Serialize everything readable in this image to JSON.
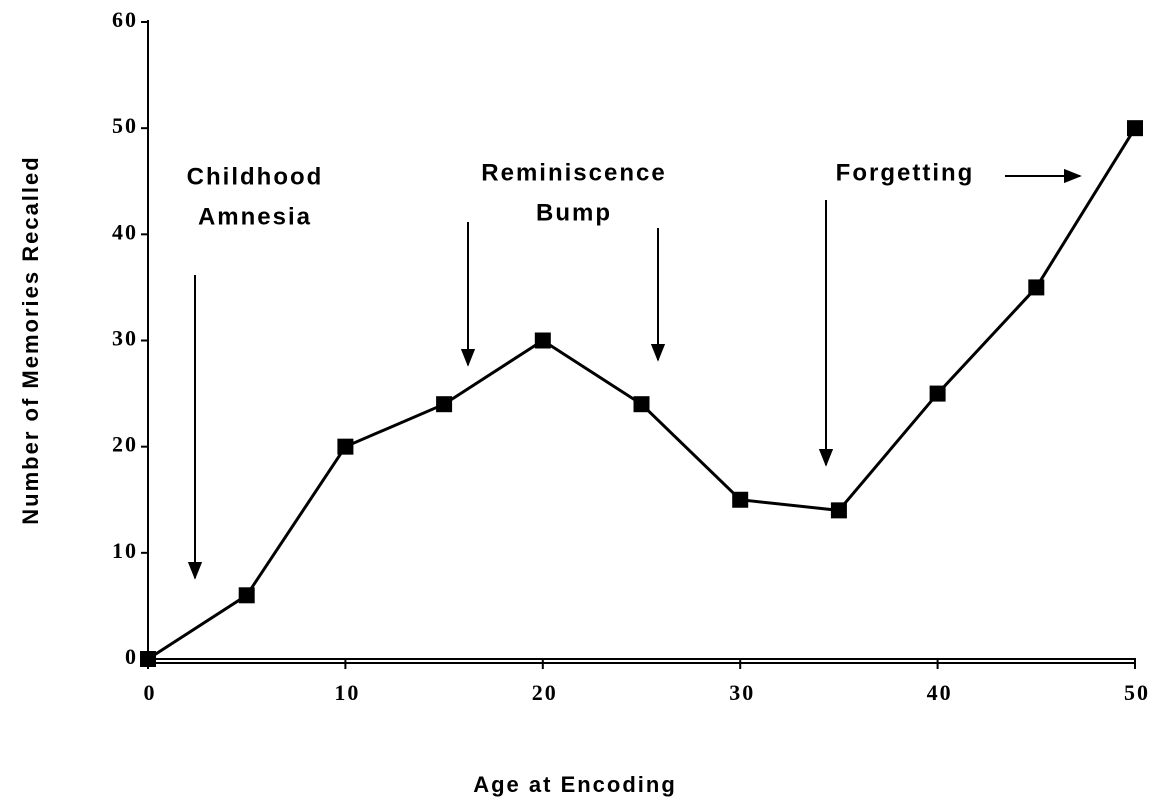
{
  "chart_data": {
    "type": "line",
    "x": [
      0,
      5,
      10,
      15,
      20,
      25,
      30,
      35,
      40,
      45,
      50
    ],
    "values": [
      0,
      6,
      20,
      24,
      30,
      24,
      15,
      14,
      25,
      35,
      50
    ],
    "color": "#000000",
    "xlabel": "Age at Encoding",
    "ylabel": "Number of Memories Recalled",
    "xlim": [
      0,
      50
    ],
    "xticks": [
      0,
      10,
      20,
      30,
      40,
      50
    ],
    "ylim": [
      0,
      60
    ],
    "yticks": [
      0,
      10,
      20,
      30,
      40,
      50,
      60
    ],
    "annotations": [
      {
        "lines": [
          "Childhood",
          "Amnesia"
        ]
      },
      {
        "lines": [
          "Reminiscence",
          "Bump"
        ]
      },
      {
        "lines": [
          "Forgetting"
        ]
      }
    ]
  }
}
